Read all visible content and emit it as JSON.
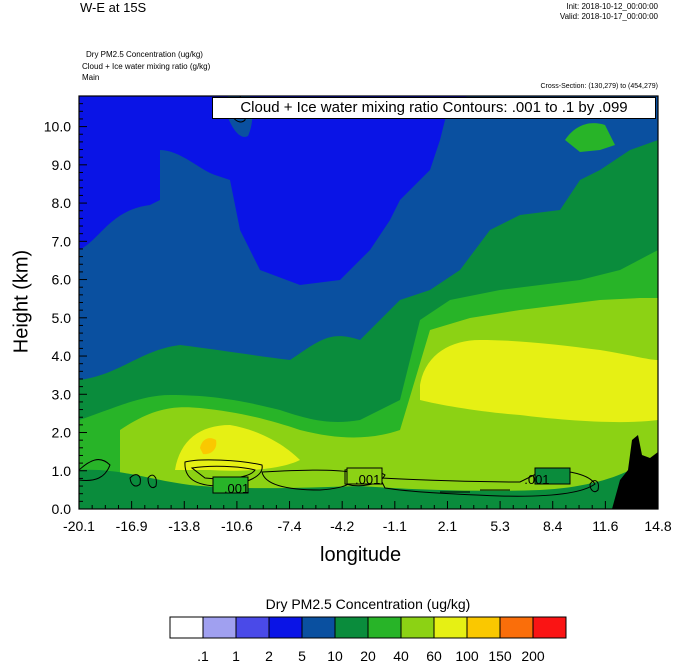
{
  "header": {
    "title_left": "W-E at 15S",
    "init": "Init: 2018-10-12_00:00:00",
    "valid": "Valid: 2018-10-17_00:00:00",
    "field1": "Dry PM2.5 Concentration   (ug/kg)",
    "field2": "Cloud + Ice water mixing ratio   (g/kg)",
    "field3": "Main",
    "cross_section": "Cross-Section: (130,279) to (454,279)"
  },
  "colors": {
    "levels": [
      "#ffffff",
      "#a0a0f0",
      "#4a4ae8",
      "#0a14e6",
      "#0a50a0",
      "#0a8c3c",
      "#28b428",
      "#8cd214",
      "#e6f014",
      "#fac800",
      "#fa6e0a",
      "#fa1414"
    ],
    "terrain": "#000000",
    "contour": "#000000"
  },
  "chart_data": {
    "type": "heatmap",
    "title": "Cloud + Ice water mixing ratio Contours: .001 to .1 by .099",
    "xlabel": "longitude",
    "ylabel": "Height (km)",
    "x_ticks": [
      "-20.1",
      "-16.9",
      "-13.8",
      "-10.6",
      "-7.4",
      "-4.2",
      "-1.1",
      "2.1",
      "5.3",
      "8.4",
      "11.6",
      "14.8"
    ],
    "y_ticks": [
      "0.0",
      "1.0",
      "2.0",
      "3.0",
      "4.0",
      "5.0",
      "6.0",
      "7.0",
      "8.0",
      "9.0",
      "10.0"
    ],
    "xlim": [
      -20.1,
      14.8
    ],
    "ylim": [
      0,
      10.8
    ],
    "colorbar": {
      "title": "Dry PM2.5 Concentration  (ug/kg)",
      "labels": [
        ".1",
        "1",
        "2",
        "5",
        "10",
        "20",
        "40",
        "60",
        "100",
        "150",
        "200"
      ]
    },
    "contour_labels": [
      {
        "text": ".001",
        "x": -10.6,
        "y": 0.55
      },
      {
        "text": ".001",
        "x": -2.7,
        "y": 0.78
      },
      {
        "text": ".001",
        "x": 7.5,
        "y": 0.78
      }
    ]
  }
}
